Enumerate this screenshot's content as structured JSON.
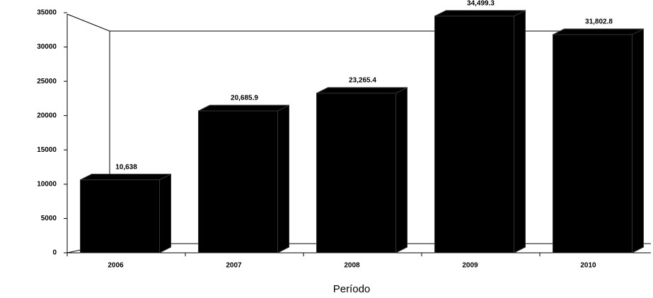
{
  "chart_data": {
    "type": "bar",
    "categories": [
      "2006",
      "2007",
      "2008",
      "2009",
      "2010"
    ],
    "values": [
      10638,
      20685.9,
      23265.4,
      34499.3,
      31802.8
    ],
    "value_labels": [
      "10,638",
      "20,685.9",
      "23,265.4",
      "34,499.3",
      "31,802.8"
    ],
    "color": "#000000",
    "x_label": "Período",
    "ylim": [
      0,
      35000
    ],
    "yticks": [
      0,
      5000,
      10000,
      15000,
      20000,
      25000,
      30000,
      35000
    ]
  }
}
